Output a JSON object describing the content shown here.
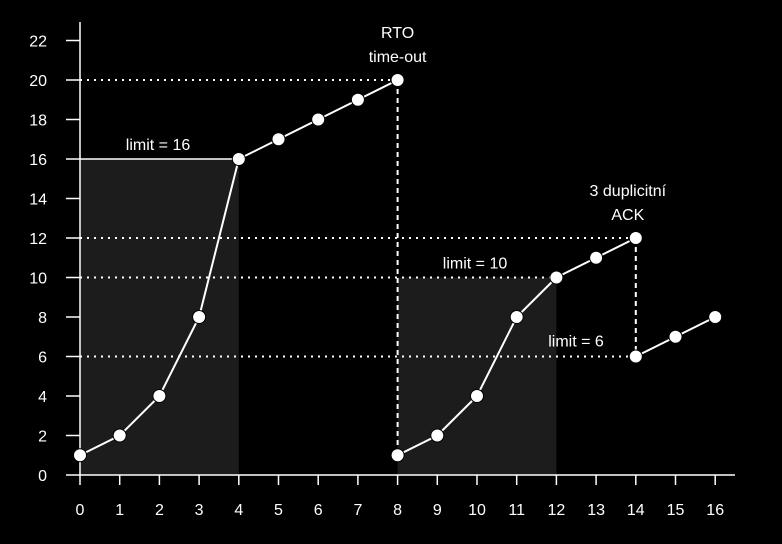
{
  "chart_data": {
    "type": "line",
    "title": "",
    "xlabel": "",
    "ylabel": "",
    "xlim": [
      0,
      16
    ],
    "ylim": [
      0,
      22
    ],
    "x_ticks": [
      0,
      1,
      2,
      3,
      4,
      5,
      6,
      7,
      8,
      9,
      10,
      11,
      12,
      13,
      14,
      15,
      16
    ],
    "y_ticks": [
      0,
      2,
      4,
      6,
      8,
      10,
      12,
      14,
      16,
      18,
      20,
      22
    ],
    "grid": false,
    "colors": {
      "background": "#000000",
      "line": "#ffffff",
      "shade": "#1c1c1c"
    },
    "series": [
      {
        "x": [
          0,
          1,
          2,
          3,
          4,
          5,
          6,
          7,
          8
        ],
        "y": [
          1,
          2,
          4,
          8,
          16,
          17,
          18,
          19,
          20
        ]
      },
      {
        "x": [
          8,
          9,
          10,
          11,
          12,
          13,
          14
        ],
        "y": [
          1,
          2,
          4,
          8,
          10,
          11,
          12
        ]
      },
      {
        "x": [
          14,
          15,
          16
        ],
        "y": [
          6,
          7,
          8
        ]
      }
    ],
    "threshold_lines": [
      {
        "label": "limit = 16",
        "y": 16,
        "x_start": 0,
        "x_end": 4
      },
      {
        "label": "limit = 10",
        "y": 10,
        "x_start": 0,
        "x_end": 12
      },
      {
        "label": "limit = 6",
        "y": 6,
        "x_start": 0,
        "x_end": 14
      }
    ],
    "reference_lines": [
      {
        "y": 20,
        "x_start": 0,
        "x_end": 8
      },
      {
        "y": 12,
        "x_start": 0,
        "x_end": 14
      }
    ],
    "drop_lines": [
      {
        "x": 8,
        "y_from": 20,
        "y_to": 1
      },
      {
        "x": 14,
        "y_from": 12,
        "y_to": 6
      }
    ],
    "shaded_regions": [
      {
        "x_start": 0,
        "x_end": 4,
        "y_top": 16
      },
      {
        "x_start": 8,
        "x_end": 12,
        "y_top": 10
      }
    ],
    "annotations": [
      {
        "lines": [
          "RTO",
          "time-out"
        ],
        "x": 8,
        "y": 20
      },
      {
        "lines": [
          "3 duplicitní",
          "ACK"
        ],
        "x": 14,
        "y": 12
      }
    ]
  }
}
